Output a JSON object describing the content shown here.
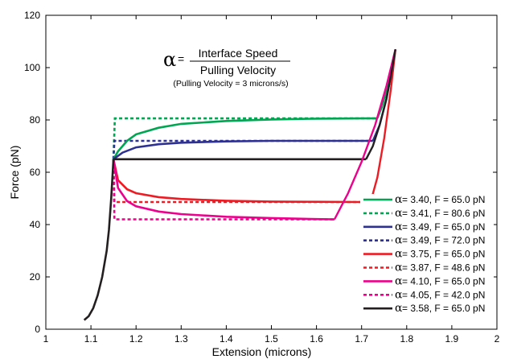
{
  "chart_data": {
    "type": "line",
    "xlabel": "Extension (microns)",
    "ylabel": "Force (pN)",
    "xlim": [
      1,
      2
    ],
    "ylim": [
      0,
      120
    ],
    "x_ticks": [
      "1",
      "1.1",
      "1.2",
      "1.3",
      "1.4",
      "1.5",
      "1.6",
      "1.7",
      "1.8",
      "1.9",
      "2"
    ],
    "y_ticks": [
      "0",
      "20",
      "40",
      "60",
      "80",
      "100",
      "120"
    ],
    "grid": false,
    "legend_position": "lower-right",
    "annotation": {
      "alpha_symbol": "α",
      "equals": "=",
      "numerator": "Interface Speed",
      "denominator": "Pulling Velocity",
      "note": "(Pulling Velocity = 3 microns/s)"
    },
    "series": [
      {
        "name": "= 3.40, F = 65.0 pN",
        "color": "#00a651",
        "dash": "solid",
        "x": [
          1.15,
          1.16,
          1.18,
          1.2,
          1.25,
          1.3,
          1.4,
          1.5,
          1.6,
          1.7,
          1.735
        ],
        "y": [
          65,
          68,
          72,
          74.5,
          77,
          78.5,
          79.6,
          80.2,
          80.5,
          80.6,
          80.6
        ]
      },
      {
        "name": "= 3.41, F = 80.6 pN",
        "color": "#00a651",
        "dash": "dotted",
        "x": [
          1.15,
          1.153,
          1.2,
          1.3,
          1.4,
          1.5,
          1.6,
          1.7,
          1.735
        ],
        "y": [
          65,
          80.6,
          80.6,
          80.6,
          80.6,
          80.6,
          80.6,
          80.6,
          80.6
        ]
      },
      {
        "name": "= 3.49, F = 65.0 pN",
        "color": "#2e3192",
        "dash": "solid",
        "x": [
          1.15,
          1.17,
          1.2,
          1.25,
          1.3,
          1.4,
          1.5,
          1.6,
          1.7,
          1.725
        ],
        "y": [
          65,
          67.5,
          69.5,
          70.7,
          71.3,
          71.8,
          72,
          72,
          72,
          72
        ]
      },
      {
        "name": "= 3.49, F = 72.0 pN",
        "color": "#2e3192",
        "dash": "dotted",
        "x": [
          1.15,
          1.152,
          1.2,
          1.3,
          1.4,
          1.5,
          1.6,
          1.7,
          1.725
        ],
        "y": [
          65,
          72,
          72,
          72,
          72,
          72,
          72,
          72,
          72
        ]
      },
      {
        "name": "= 3.75, F = 65.0 pN",
        "color": "#ed1c24",
        "dash": "solid",
        "x": [
          1.15,
          1.16,
          1.18,
          1.2,
          1.25,
          1.3,
          1.4,
          1.5,
          1.6,
          1.7,
          1.72
        ],
        "y": [
          65,
          57,
          53.5,
          52,
          50.5,
          49.8,
          49.1,
          48.8,
          48.7,
          48.6,
          48.6
        ]
      },
      {
        "name": "= 3.87, F = 48.6 pN",
        "color": "#ed1c24",
        "dash": "dotted",
        "x": [
          1.15,
          1.152,
          1.2,
          1.3,
          1.4,
          1.5,
          1.6,
          1.7,
          1.72
        ],
        "y": [
          65,
          48.6,
          48.6,
          48.6,
          48.6,
          48.6,
          48.6,
          48.6,
          48.6
        ]
      },
      {
        "name": "= 4.10, F = 65.0 pN",
        "color": "#ec008c",
        "dash": "solid",
        "x": [
          1.15,
          1.16,
          1.18,
          1.2,
          1.25,
          1.3,
          1.4,
          1.5,
          1.6,
          1.64
        ],
        "y": [
          65,
          54,
          49,
          47,
          45,
          44,
          43,
          42.5,
          42.1,
          42
        ]
      },
      {
        "name": "= 4.05, F = 42.0 pN",
        "color": "#ec008c",
        "dash": "dotted",
        "x": [
          1.15,
          1.152,
          1.2,
          1.3,
          1.4,
          1.5,
          1.6,
          1.64
        ],
        "y": [
          65,
          42,
          42,
          42,
          42,
          42,
          42,
          42
        ]
      },
      {
        "name": "= 3.58, F = 65.0 pN",
        "color": "#231f20",
        "dash": "solid",
        "x": [
          1.15,
          1.2,
          1.3,
          1.4,
          1.5,
          1.6,
          1.7,
          1.71
        ],
        "y": [
          65,
          65,
          65,
          65,
          65,
          65,
          65,
          65
        ]
      }
    ],
    "rise_curve": {
      "color": "#231f20",
      "x": [
        1.085,
        1.095,
        1.105,
        1.115,
        1.125,
        1.135,
        1.14,
        1.145,
        1.15
      ],
      "y": [
        3.5,
        5,
        8,
        13,
        20,
        30,
        38,
        50,
        65
      ]
    },
    "end_curves": [
      {
        "color": "#00a651",
        "x": [
          1.735,
          1.745,
          1.755,
          1.765,
          1.775
        ],
        "y": [
          80.6,
          85,
          91,
          99,
          107
        ]
      },
      {
        "color": "#2e3192",
        "x": [
          1.725,
          1.74,
          1.755,
          1.765,
          1.775
        ],
        "y": [
          72,
          78,
          88,
          97,
          107
        ]
      },
      {
        "color": "#ed1c24",
        "x": [
          1.72,
          1.735,
          1.75,
          1.765,
          1.775
        ],
        "y": [
          48.6,
          58,
          73,
          92,
          107
        ]
      },
      {
        "color": "#ec008c",
        "x": [
          1.64,
          1.67,
          1.7,
          1.73,
          1.755,
          1.775
        ],
        "y": [
          42,
          52,
          64,
          78,
          93,
          107
        ]
      },
      {
        "color": "#231f20",
        "x": [
          1.71,
          1.725,
          1.74,
          1.755,
          1.765,
          1.775
        ],
        "y": [
          65,
          70,
          78,
          88,
          97,
          107
        ]
      }
    ],
    "legend_alpha": "α"
  }
}
